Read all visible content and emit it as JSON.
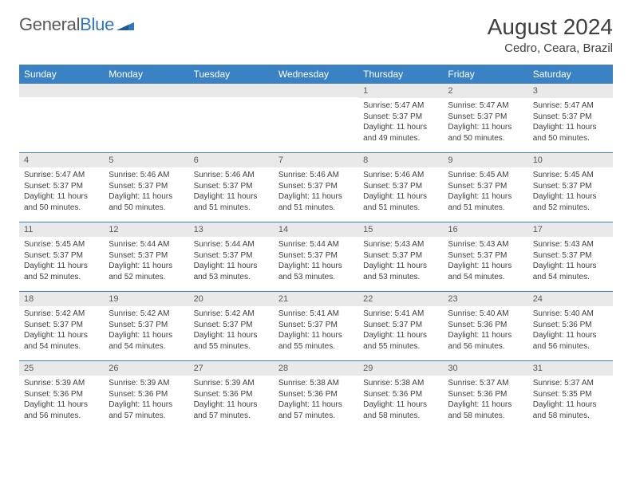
{
  "logo": {
    "text1": "General",
    "text2": "Blue"
  },
  "title": "August 2024",
  "location": "Cedro, Ceara, Brazil",
  "colors": {
    "header_bg": "#3a82c4",
    "header_text": "#ffffff",
    "daynum_bg": "#e9e9e9",
    "daynum_text": "#5a5a5a",
    "body_text": "#3f3f3f",
    "rule": "#3a82c4",
    "logo_gray": "#595959",
    "logo_blue": "#2f77bd"
  },
  "weekdays": [
    "Sunday",
    "Monday",
    "Tuesday",
    "Wednesday",
    "Thursday",
    "Friday",
    "Saturday"
  ],
  "weeks": [
    [
      null,
      null,
      null,
      null,
      {
        "n": "1",
        "sr": "Sunrise: 5:47 AM",
        "ss": "Sunset: 5:37 PM",
        "dl": "Daylight: 11 hours and 49 minutes."
      },
      {
        "n": "2",
        "sr": "Sunrise: 5:47 AM",
        "ss": "Sunset: 5:37 PM",
        "dl": "Daylight: 11 hours and 50 minutes."
      },
      {
        "n": "3",
        "sr": "Sunrise: 5:47 AM",
        "ss": "Sunset: 5:37 PM",
        "dl": "Daylight: 11 hours and 50 minutes."
      }
    ],
    [
      {
        "n": "4",
        "sr": "Sunrise: 5:47 AM",
        "ss": "Sunset: 5:37 PM",
        "dl": "Daylight: 11 hours and 50 minutes."
      },
      {
        "n": "5",
        "sr": "Sunrise: 5:46 AM",
        "ss": "Sunset: 5:37 PM",
        "dl": "Daylight: 11 hours and 50 minutes."
      },
      {
        "n": "6",
        "sr": "Sunrise: 5:46 AM",
        "ss": "Sunset: 5:37 PM",
        "dl": "Daylight: 11 hours and 51 minutes."
      },
      {
        "n": "7",
        "sr": "Sunrise: 5:46 AM",
        "ss": "Sunset: 5:37 PM",
        "dl": "Daylight: 11 hours and 51 minutes."
      },
      {
        "n": "8",
        "sr": "Sunrise: 5:46 AM",
        "ss": "Sunset: 5:37 PM",
        "dl": "Daylight: 11 hours and 51 minutes."
      },
      {
        "n": "9",
        "sr": "Sunrise: 5:45 AM",
        "ss": "Sunset: 5:37 PM",
        "dl": "Daylight: 11 hours and 51 minutes."
      },
      {
        "n": "10",
        "sr": "Sunrise: 5:45 AM",
        "ss": "Sunset: 5:37 PM",
        "dl": "Daylight: 11 hours and 52 minutes."
      }
    ],
    [
      {
        "n": "11",
        "sr": "Sunrise: 5:45 AM",
        "ss": "Sunset: 5:37 PM",
        "dl": "Daylight: 11 hours and 52 minutes."
      },
      {
        "n": "12",
        "sr": "Sunrise: 5:44 AM",
        "ss": "Sunset: 5:37 PM",
        "dl": "Daylight: 11 hours and 52 minutes."
      },
      {
        "n": "13",
        "sr": "Sunrise: 5:44 AM",
        "ss": "Sunset: 5:37 PM",
        "dl": "Daylight: 11 hours and 53 minutes."
      },
      {
        "n": "14",
        "sr": "Sunrise: 5:44 AM",
        "ss": "Sunset: 5:37 PM",
        "dl": "Daylight: 11 hours and 53 minutes."
      },
      {
        "n": "15",
        "sr": "Sunrise: 5:43 AM",
        "ss": "Sunset: 5:37 PM",
        "dl": "Daylight: 11 hours and 53 minutes."
      },
      {
        "n": "16",
        "sr": "Sunrise: 5:43 AM",
        "ss": "Sunset: 5:37 PM",
        "dl": "Daylight: 11 hours and 54 minutes."
      },
      {
        "n": "17",
        "sr": "Sunrise: 5:43 AM",
        "ss": "Sunset: 5:37 PM",
        "dl": "Daylight: 11 hours and 54 minutes."
      }
    ],
    [
      {
        "n": "18",
        "sr": "Sunrise: 5:42 AM",
        "ss": "Sunset: 5:37 PM",
        "dl": "Daylight: 11 hours and 54 minutes."
      },
      {
        "n": "19",
        "sr": "Sunrise: 5:42 AM",
        "ss": "Sunset: 5:37 PM",
        "dl": "Daylight: 11 hours and 54 minutes."
      },
      {
        "n": "20",
        "sr": "Sunrise: 5:42 AM",
        "ss": "Sunset: 5:37 PM",
        "dl": "Daylight: 11 hours and 55 minutes."
      },
      {
        "n": "21",
        "sr": "Sunrise: 5:41 AM",
        "ss": "Sunset: 5:37 PM",
        "dl": "Daylight: 11 hours and 55 minutes."
      },
      {
        "n": "22",
        "sr": "Sunrise: 5:41 AM",
        "ss": "Sunset: 5:37 PM",
        "dl": "Daylight: 11 hours and 55 minutes."
      },
      {
        "n": "23",
        "sr": "Sunrise: 5:40 AM",
        "ss": "Sunset: 5:36 PM",
        "dl": "Daylight: 11 hours and 56 minutes."
      },
      {
        "n": "24",
        "sr": "Sunrise: 5:40 AM",
        "ss": "Sunset: 5:36 PM",
        "dl": "Daylight: 11 hours and 56 minutes."
      }
    ],
    [
      {
        "n": "25",
        "sr": "Sunrise: 5:39 AM",
        "ss": "Sunset: 5:36 PM",
        "dl": "Daylight: 11 hours and 56 minutes."
      },
      {
        "n": "26",
        "sr": "Sunrise: 5:39 AM",
        "ss": "Sunset: 5:36 PM",
        "dl": "Daylight: 11 hours and 57 minutes."
      },
      {
        "n": "27",
        "sr": "Sunrise: 5:39 AM",
        "ss": "Sunset: 5:36 PM",
        "dl": "Daylight: 11 hours and 57 minutes."
      },
      {
        "n": "28",
        "sr": "Sunrise: 5:38 AM",
        "ss": "Sunset: 5:36 PM",
        "dl": "Daylight: 11 hours and 57 minutes."
      },
      {
        "n": "29",
        "sr": "Sunrise: 5:38 AM",
        "ss": "Sunset: 5:36 PM",
        "dl": "Daylight: 11 hours and 58 minutes."
      },
      {
        "n": "30",
        "sr": "Sunrise: 5:37 AM",
        "ss": "Sunset: 5:36 PM",
        "dl": "Daylight: 11 hours and 58 minutes."
      },
      {
        "n": "31",
        "sr": "Sunrise: 5:37 AM",
        "ss": "Sunset: 5:35 PM",
        "dl": "Daylight: 11 hours and 58 minutes."
      }
    ]
  ]
}
